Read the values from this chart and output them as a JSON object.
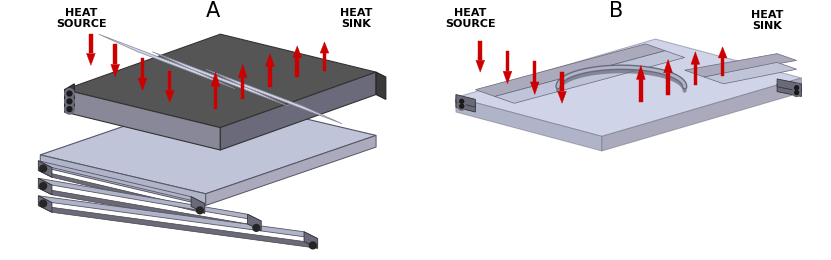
{
  "fig_width": 8.31,
  "fig_height": 2.6,
  "dpi": 100,
  "background_color": "#ffffff",
  "label_A": "A",
  "label_B": "B",
  "label_fontsize": 15,
  "label_color": "#000000",
  "heat_source_label": "HEAT\nSOURCE",
  "heat_sink_label": "HEAT\nSINK",
  "arrow_color": "#cc0000",
  "text_fontsize": 8,
  "text_color": "#000000",
  "dark_gray": "#555555",
  "mid_gray": "#888898",
  "light_gray": "#aaaabc",
  "lighter_blue": "#c0c4d8",
  "lightest_blue": "#d0d4e8",
  "pipe_silver": "#b0b4c8",
  "pipe_dark": "#6a6a7a",
  "very_dark": "#3a3a3a"
}
